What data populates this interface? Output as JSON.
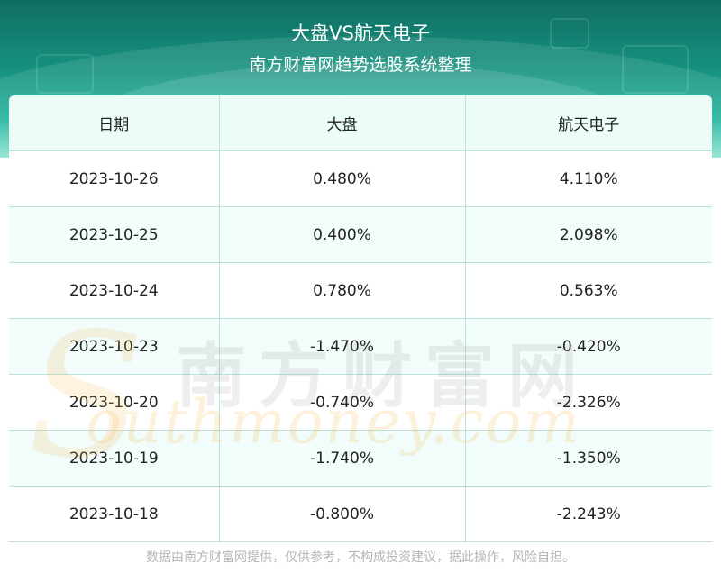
{
  "header": {
    "title": "大盘VS航天电子",
    "subtitle": "南方财富网趋势选股系统整理"
  },
  "table": {
    "columns": [
      "日期",
      "大盘",
      "航天电子"
    ],
    "rows": [
      [
        "2023-10-26",
        "0.480%",
        "4.110%"
      ],
      [
        "2023-10-25",
        "0.400%",
        "2.098%"
      ],
      [
        "2023-10-24",
        "0.780%",
        "0.563%"
      ],
      [
        "2023-10-23",
        "-1.470%",
        "-0.420%"
      ],
      [
        "2023-10-20",
        "-0.740%",
        "-2.326%"
      ],
      [
        "2023-10-19",
        "-1.740%",
        "-1.350%"
      ],
      [
        "2023-10-18",
        "-0.800%",
        "-2.243%"
      ]
    ]
  },
  "watermark": {
    "cn": "南方财富网",
    "en": "outhmoney.com",
    "s": "S"
  },
  "footer": {
    "disclaimer": "数据由南方财富网提供，仅供参考，不构成投资建议，据此操作，风险自担。"
  },
  "colors": {
    "banner_dark": "#0f6e62",
    "banner_light": "#1fb39a",
    "border": "#b9e4dc",
    "row_alt": "#f2fcfa",
    "watermark_orange": "#f6be5a"
  }
}
